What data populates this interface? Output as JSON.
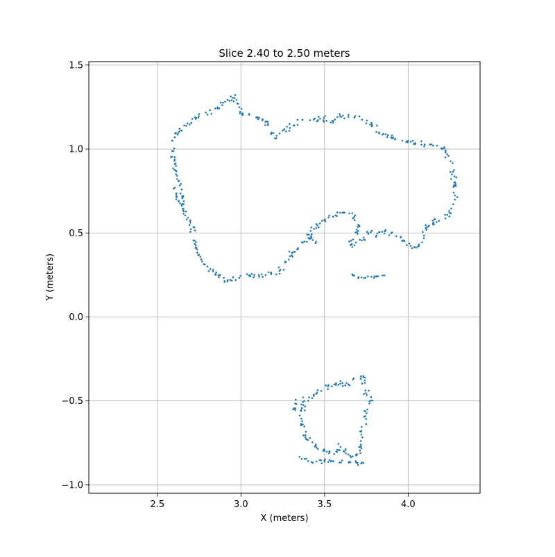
{
  "chart_data": {
    "type": "scatter",
    "title": "Slice 2.40 to 2.50 meters",
    "xlabel": "X (meters)",
    "ylabel": "Y (meters)",
    "xlim": [
      2.09,
      4.43
    ],
    "ylim": [
      -1.05,
      1.52
    ],
    "xticks": [
      2.5,
      3.0,
      3.5,
      4.0
    ],
    "xtick_labels": [
      "2.5",
      "3.0",
      "3.5",
      "4.0"
    ],
    "yticks": [
      -1.0,
      -0.5,
      0.0,
      0.5,
      1.0,
      1.5
    ],
    "ytick_labels": [
      "−1.0",
      "−0.5",
      "0.0",
      "0.5",
      "1.0",
      "1.5"
    ],
    "grid": true,
    "marker_color": "#1f77b4",
    "series": [
      {
        "outline": [
          [
            2.58,
            1.05
          ],
          [
            2.64,
            1.12
          ],
          [
            2.72,
            1.18
          ],
          [
            2.82,
            1.22
          ],
          [
            2.9,
            1.27
          ],
          [
            2.96,
            1.31
          ],
          [
            3.0,
            1.21
          ],
          [
            3.08,
            1.2
          ],
          [
            3.14,
            1.17
          ],
          [
            3.18,
            1.1
          ],
          [
            3.21,
            1.07
          ],
          [
            3.27,
            1.12
          ],
          [
            3.38,
            1.17
          ],
          [
            3.5,
            1.18
          ],
          [
            3.55,
            1.16
          ],
          [
            3.6,
            1.2
          ],
          [
            3.7,
            1.19
          ],
          [
            3.78,
            1.15
          ],
          [
            3.84,
            1.09
          ],
          [
            3.95,
            1.05
          ],
          [
            4.05,
            1.04
          ],
          [
            4.15,
            1.02
          ],
          [
            4.22,
            1.0
          ],
          [
            4.26,
            0.93
          ],
          [
            4.28,
            0.8
          ],
          [
            4.28,
            0.68
          ],
          [
            4.24,
            0.6
          ],
          [
            4.12,
            0.55
          ],
          [
            4.08,
            0.45
          ],
          [
            4.05,
            0.42
          ],
          [
            3.98,
            0.43
          ],
          [
            3.95,
            0.48
          ],
          [
            3.9,
            0.5
          ],
          [
            3.84,
            0.51
          ],
          [
            3.8,
            0.49
          ],
          [
            3.78,
            0.52
          ],
          [
            3.74,
            0.47
          ],
          [
            3.7,
            0.44
          ],
          [
            3.65,
            0.42
          ],
          [
            3.7,
            0.53
          ],
          [
            3.68,
            0.61
          ],
          [
            3.6,
            0.62
          ],
          [
            3.52,
            0.6
          ],
          [
            3.47,
            0.55
          ],
          [
            3.42,
            0.52
          ],
          [
            3.38,
            0.44
          ],
          [
            3.3,
            0.37
          ],
          [
            3.22,
            0.26
          ],
          [
            3.1,
            0.25
          ],
          [
            3.0,
            0.24
          ],
          [
            2.92,
            0.21
          ],
          [
            2.84,
            0.26
          ],
          [
            2.78,
            0.31
          ],
          [
            2.74,
            0.38
          ],
          [
            2.72,
            0.47
          ],
          [
            2.7,
            0.55
          ],
          [
            2.66,
            0.62
          ],
          [
            2.65,
            0.75
          ],
          [
            2.62,
            0.82
          ],
          [
            2.6,
            0.92
          ],
          [
            2.58,
            1.05
          ]
        ],
        "fragments": [
          [
            [
              3.65,
              0.26
            ],
            [
              3.72,
              0.23
            ],
            [
              3.8,
              0.24
            ],
            [
              3.87,
              0.25
            ]
          ],
          [
            [
              2.6,
              0.78
            ],
            [
              2.62,
              0.7
            ],
            [
              2.66,
              0.64
            ]
          ],
          [
            [
              3.36,
              0.44
            ],
            [
              3.42,
              0.47
            ],
            [
              3.45,
              0.44
            ]
          ]
        ]
      },
      {
        "outline": [
          [
            3.3,
            -0.56
          ],
          [
            3.35,
            -0.5
          ],
          [
            3.38,
            -0.49
          ],
          [
            3.36,
            -0.58
          ],
          [
            3.38,
            -0.72
          ],
          [
            3.42,
            -0.74
          ],
          [
            3.46,
            -0.78
          ],
          [
            3.5,
            -0.8
          ],
          [
            3.55,
            -0.82
          ],
          [
            3.58,
            -0.8
          ],
          [
            3.6,
            -0.75
          ],
          [
            3.63,
            -0.82
          ],
          [
            3.68,
            -0.83
          ],
          [
            3.72,
            -0.8
          ],
          [
            3.72,
            -0.7
          ],
          [
            3.74,
            -0.6
          ],
          [
            3.76,
            -0.55
          ],
          [
            3.78,
            -0.48
          ],
          [
            3.74,
            -0.44
          ],
          [
            3.73,
            -0.36
          ],
          [
            3.68,
            -0.36
          ],
          [
            3.64,
            -0.4
          ],
          [
            3.58,
            -0.4
          ],
          [
            3.52,
            -0.41
          ],
          [
            3.48,
            -0.43
          ],
          [
            3.4,
            -0.5
          ]
        ],
        "bottom_edge": [
          [
            3.36,
            -0.84
          ],
          [
            3.42,
            -0.86
          ],
          [
            3.5,
            -0.86
          ],
          [
            3.58,
            -0.86
          ],
          [
            3.66,
            -0.86
          ],
          [
            3.72,
            -0.88
          ],
          [
            3.74,
            -0.86
          ]
        ]
      }
    ]
  }
}
